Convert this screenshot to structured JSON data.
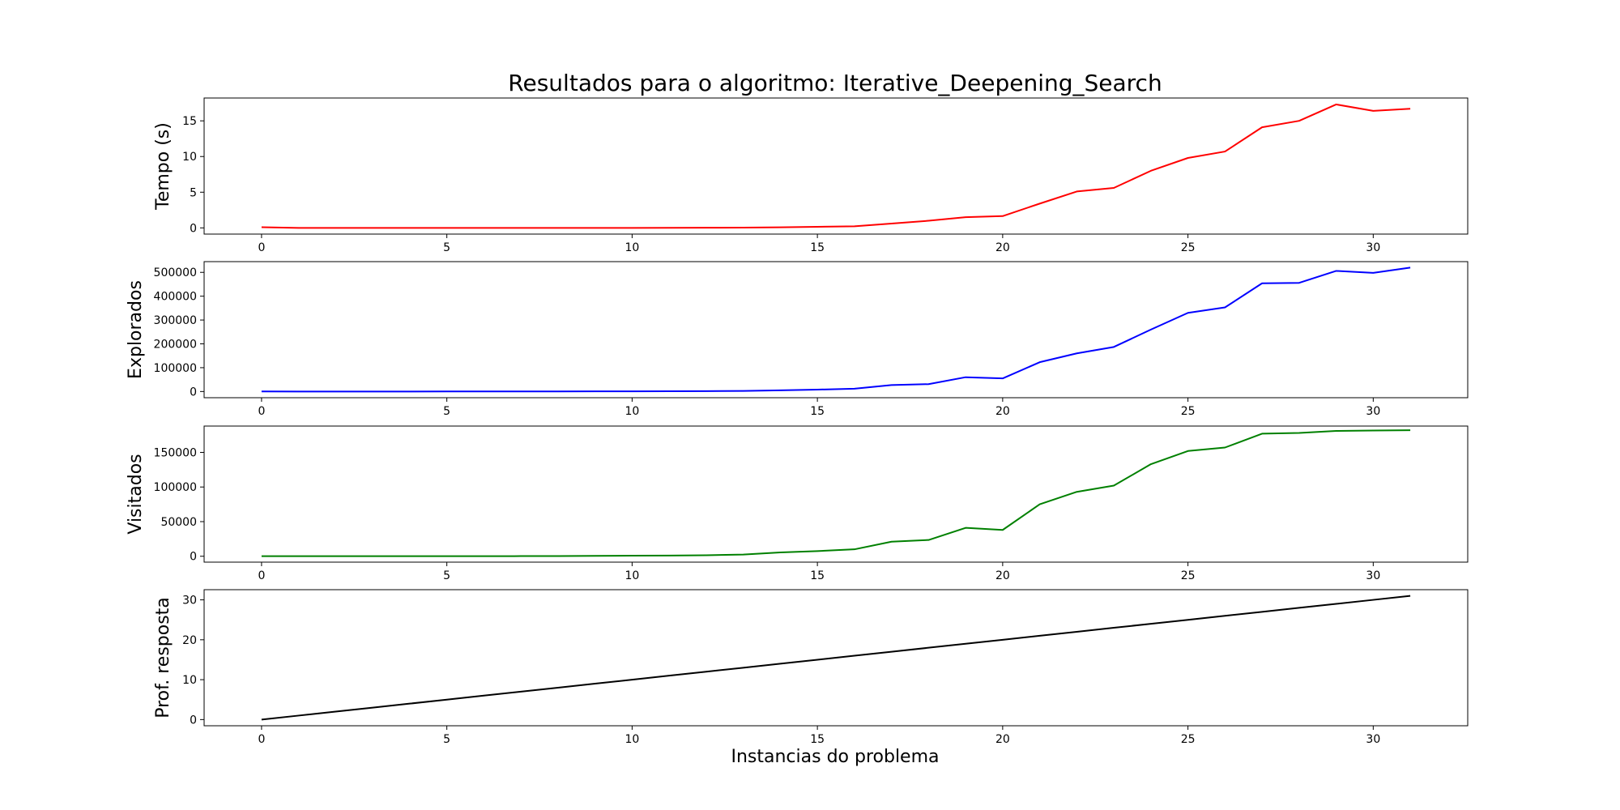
{
  "chart_data": {
    "type": "line",
    "title": "Resultados para o algoritmo: Iterative_Deepening_Search",
    "xlabel": "Instancias do problema",
    "x": [
      0,
      1,
      2,
      3,
      4,
      5,
      6,
      7,
      8,
      9,
      10,
      11,
      12,
      13,
      14,
      15,
      16,
      17,
      18,
      19,
      20,
      21,
      22,
      23,
      24,
      25,
      26,
      27,
      28,
      29,
      30,
      31
    ],
    "xticks": [
      0,
      5,
      10,
      15,
      20,
      25,
      30
    ],
    "xlim": [
      -1.55,
      32.55
    ],
    "grid": false,
    "subplots": [
      {
        "ylabel": "Tempo (s)",
        "color": "#ff0000",
        "ylim": [
          -0.87,
          18.2
        ],
        "yticks": [
          0,
          5,
          10,
          15
        ],
        "ytick_labels": [
          "0",
          "5",
          "10",
          "15"
        ],
        "values": [
          0.1,
          0.0,
          0.0,
          0.0,
          0.0,
          0.0,
          0.0,
          0.0,
          0.0,
          0.0,
          0.0,
          0.01,
          0.02,
          0.04,
          0.08,
          0.15,
          0.22,
          0.6,
          1.0,
          1.5,
          1.65,
          3.4,
          5.1,
          5.6,
          8.0,
          9.8,
          10.7,
          14.1,
          15.0,
          17.3,
          16.4,
          16.7
        ]
      },
      {
        "ylabel": "Explorados",
        "color": "#0000ff",
        "ylim": [
          -26000,
          545000
        ],
        "yticks": [
          0,
          100000,
          200000,
          300000,
          400000,
          500000
        ],
        "ytick_labels": [
          "0",
          "100000",
          "200000",
          "300000",
          "400000",
          "500000"
        ],
        "values": [
          200,
          100,
          100,
          100,
          100,
          150,
          200,
          300,
          400,
          600,
          800,
          1000,
          1500,
          2500,
          5000,
          8000,
          12000,
          27000,
          31000,
          60000,
          55000,
          123000,
          160000,
          187000,
          260000,
          330000,
          353000,
          454000,
          456000,
          506000,
          498000,
          520000
        ]
      },
      {
        "ylabel": "Visitados",
        "color": "#008000",
        "ylim": [
          -8500,
          188000
        ],
        "yticks": [
          0,
          50000,
          100000,
          150000
        ],
        "ytick_labels": [
          "0",
          "50000",
          "100000",
          "150000"
        ],
        "values": [
          100,
          80,
          80,
          80,
          80,
          100,
          150,
          200,
          300,
          500,
          800,
          1000,
          1500,
          2500,
          5500,
          7500,
          10000,
          21000,
          23500,
          41000,
          38000,
          75000,
          93000,
          102000,
          133000,
          152000,
          157000,
          177000,
          178000,
          181000,
          181500,
          182000
        ]
      },
      {
        "ylabel": "Prof. resposta",
        "color": "#000000",
        "ylim": [
          -1.55,
          32.55
        ],
        "yticks": [
          0,
          10,
          20,
          30
        ],
        "ytick_labels": [
          "0",
          "10",
          "20",
          "30"
        ],
        "values": [
          0,
          1,
          2,
          3,
          4,
          5,
          6,
          7,
          8,
          9,
          10,
          11,
          12,
          13,
          14,
          15,
          16,
          17,
          18,
          19,
          20,
          21,
          22,
          23,
          24,
          25,
          26,
          27,
          28,
          29,
          30,
          31
        ]
      }
    ]
  }
}
